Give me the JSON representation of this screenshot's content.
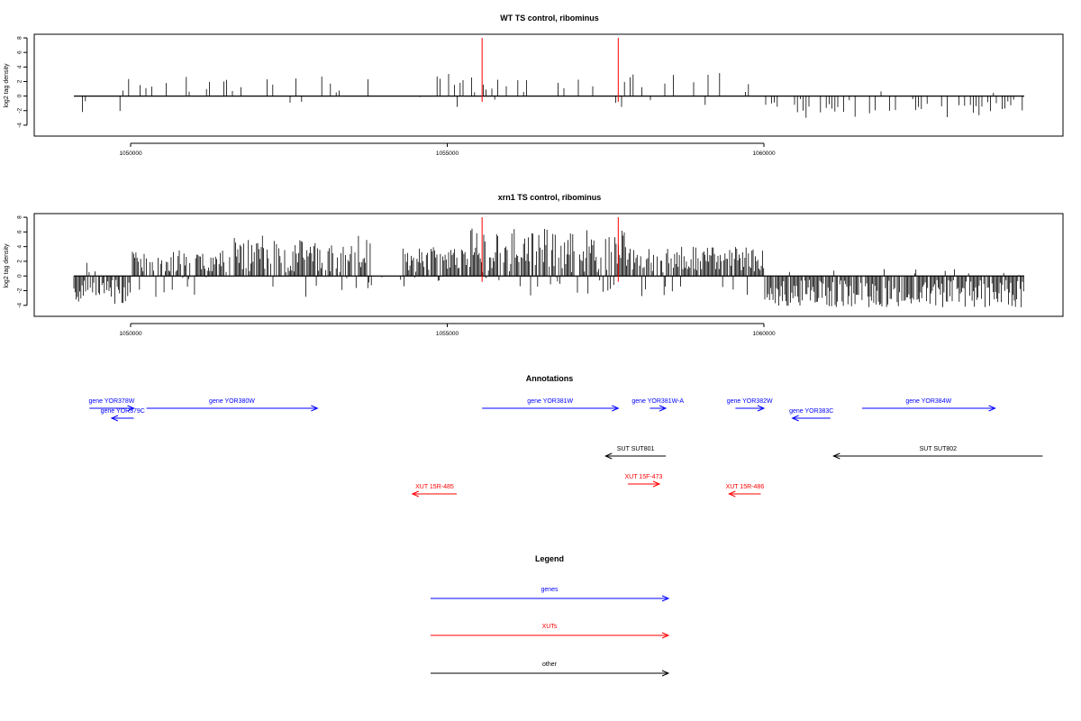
{
  "panels": [
    {
      "title": "WT TS control, ribominus",
      "ylabel": "log2 tag density",
      "yticks": [
        "8",
        "6",
        "4",
        "2",
        "0",
        "-2",
        "-4"
      ],
      "xticks": [
        "1050000",
        "1055000",
        "1060000"
      ]
    },
    {
      "title": "xrn1 TS control, ribominus",
      "ylabel": "log2 tag density",
      "yticks": [
        "8",
        "6",
        "4",
        "2",
        "0",
        "-2",
        "-4"
      ],
      "xticks": [
        "1050000",
        "1055000",
        "1060000"
      ]
    }
  ],
  "annotations": {
    "title": "Annotations",
    "features": [
      {
        "label": "gene YOR378W",
        "start": 1049350,
        "end": 1050050,
        "strand": "+",
        "type": "gene",
        "row": 0
      },
      {
        "label": "gene YOR379C",
        "start": 1049700,
        "end": 1050050,
        "strand": "-",
        "type": "gene",
        "row": 1
      },
      {
        "label": "gene YOR380W",
        "start": 1050250,
        "end": 1052950,
        "strand": "+",
        "type": "gene",
        "row": 0
      },
      {
        "label": "gene YOR381W",
        "start": 1055550,
        "end": 1057700,
        "strand": "+",
        "type": "gene",
        "row": 0
      },
      {
        "label": "gene YOR381W-A",
        "start": 1058200,
        "end": 1058450,
        "strand": "+",
        "type": "gene",
        "row": 0
      },
      {
        "label": "gene YOR382W",
        "start": 1059550,
        "end": 1060000,
        "strand": "+",
        "type": "gene",
        "row": 0
      },
      {
        "label": "gene YOR383C",
        "start": 1060450,
        "end": 1061050,
        "strand": "-",
        "type": "gene",
        "row": 1
      },
      {
        "label": "gene YOR384W",
        "start": 1061550,
        "end": 1063650,
        "strand": "+",
        "type": "gene",
        "row": 0
      },
      {
        "label": "SUT SUT801",
        "start": 1057500,
        "end": 1058450,
        "strand": "-",
        "type": "other",
        "row": 2
      },
      {
        "label": "SUT SUT802",
        "start": 1061100,
        "end": 1064400,
        "strand": "-",
        "type": "other",
        "row": 2
      },
      {
        "label": "XUT 15R-485",
        "start": 1054450,
        "end": 1055150,
        "strand": "-",
        "type": "xut",
        "row": 3
      },
      {
        "label": "XUT 15F-473",
        "start": 1057850,
        "end": 1058350,
        "strand": "+",
        "type": "xut",
        "row": 4
      },
      {
        "label": "XUT 15R-486",
        "start": 1059450,
        "end": 1059950,
        "strand": "-",
        "type": "xut",
        "row": 3
      }
    ]
  },
  "legend": {
    "title": "Legend",
    "items": [
      {
        "label": "genes",
        "color": "#0000ff"
      },
      {
        "label": "XUTs",
        "color": "#ff0000"
      },
      {
        "label": "other",
        "color": "#000000"
      }
    ]
  },
  "chart_data": [
    {
      "type": "bar",
      "title": "WT TS control, ribominus",
      "ylabel": "log2 tag density",
      "xlim": [
        1048500,
        1064900
      ],
      "ylim": [
        -5.5,
        8.5
      ],
      "markers_x": [
        1055550,
        1057700
      ],
      "marker_color": "#ff0000",
      "mode": "sparse",
      "seed": 11
    },
    {
      "type": "bar",
      "title": "xrn1 TS control, ribominus",
      "ylabel": "log2 tag density",
      "xlim": [
        1048500,
        1064900
      ],
      "ylim": [
        -5.5,
        8.5
      ],
      "markers_x": [
        1055550,
        1057700
      ],
      "marker_color": "#ff0000",
      "mode": "dense",
      "seed": 23
    }
  ]
}
